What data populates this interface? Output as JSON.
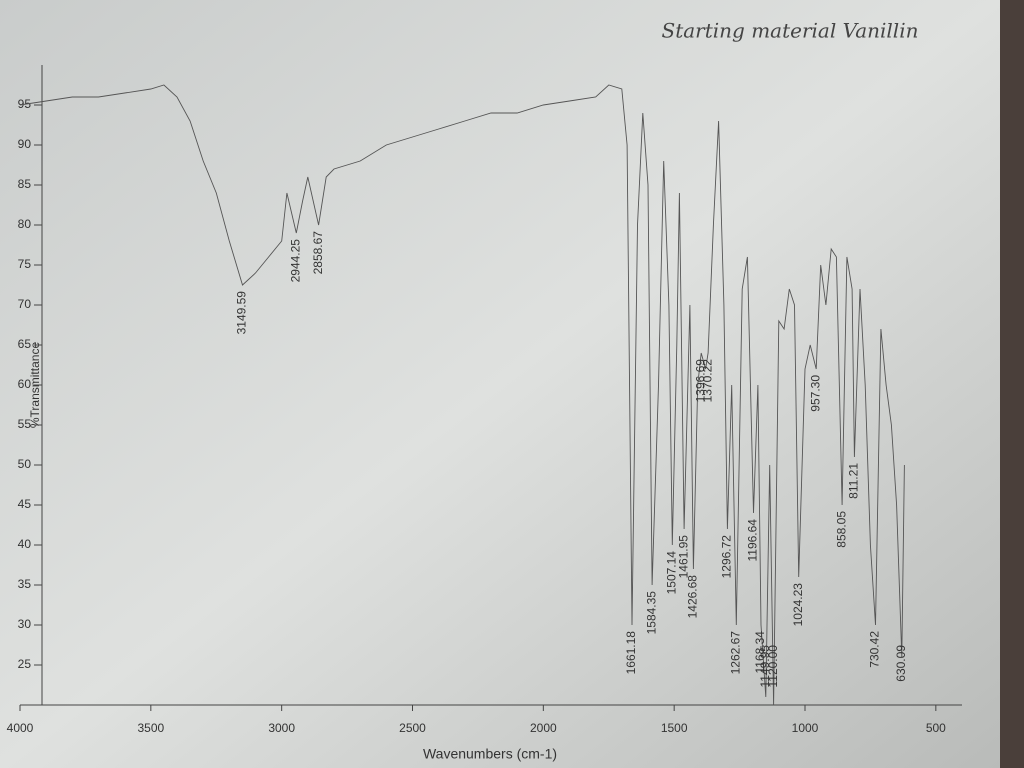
{
  "chart_data": {
    "type": "line",
    "title": "Starting material Vanillin",
    "x_label": "Wavenumbers (cm-1)",
    "y_label": "%Transmittance",
    "xlim": [
      4000,
      400
    ],
    "ylim": [
      20,
      100
    ],
    "xticks": [
      4000,
      3500,
      3000,
      2500,
      2000,
      1500,
      1000,
      500
    ],
    "yticks": [
      25,
      30,
      35,
      40,
      45,
      50,
      55,
      60,
      65,
      70,
      75,
      80,
      85,
      90,
      95
    ],
    "grid": false,
    "series": [
      {
        "name": "Vanillin",
        "color": "#555555",
        "x": [
          4000,
          3900,
          3800,
          3700,
          3600,
          3500,
          3450,
          3400,
          3350,
          3300,
          3250,
          3200,
          3149.59,
          3100,
          3050,
          3000,
          2980,
          2944.25,
          2920,
          2900,
          2858.67,
          2830,
          2800,
          2700,
          2600,
          2500,
          2400,
          2300,
          2200,
          2100,
          2000,
          1900,
          1800,
          1750,
          1700,
          1680,
          1661.18,
          1640,
          1620,
          1600,
          1584.35,
          1560,
          1540,
          1520,
          1507.14,
          1490,
          1480,
          1461.95,
          1440,
          1426.68,
          1410,
          1396.69,
          1380,
          1370.22,
          1350,
          1330,
          1310,
          1296.72,
          1280,
          1262.67,
          1240,
          1220,
          1196.64,
          1180,
          1168.34,
          1149.95,
          1135,
          1120,
          1100,
          1080,
          1060,
          1040,
          1024.23,
          1000,
          980,
          957.3,
          940,
          920,
          900,
          880,
          858.05,
          840,
          820,
          811.21,
          790,
          770,
          750,
          730.42,
          710,
          690,
          670,
          650,
          630.09,
          620
        ],
        "values": [
          95,
          95.5,
          96,
          96,
          96.5,
          97,
          97.5,
          96,
          93,
          88,
          84,
          78,
          72.5,
          74,
          76,
          78,
          84,
          79,
          83,
          86,
          80,
          86,
          87,
          88,
          90,
          91,
          92,
          93,
          94,
          94,
          95,
          95.5,
          96,
          97.5,
          97,
          90,
          30,
          80,
          94,
          85,
          35,
          60,
          88,
          70,
          40,
          65,
          84,
          42,
          70,
          37,
          60,
          64,
          62,
          64,
          80,
          93,
          70,
          42,
          60,
          30,
          72,
          76,
          44,
          60,
          30,
          21,
          50,
          20,
          68,
          67,
          72,
          70,
          36,
          62,
          65,
          62,
          75,
          70,
          77,
          76,
          45,
          76,
          72,
          51,
          72,
          60,
          40,
          30,
          67,
          60,
          55,
          45,
          26,
          50
        ]
      }
    ],
    "annotations": [
      {
        "x": 3149.59,
        "label": "3149.59"
      },
      {
        "x": 2944.25,
        "label": "2944.25"
      },
      {
        "x": 2858.67,
        "label": "2858.67"
      },
      {
        "x": 1661.18,
        "label": "1661.18"
      },
      {
        "x": 1584.35,
        "label": "1584.35"
      },
      {
        "x": 1507.14,
        "label": "1507.14"
      },
      {
        "x": 1461.95,
        "label": "1461.95"
      },
      {
        "x": 1426.68,
        "label": "1426.68"
      },
      {
        "x": 1396.69,
        "label": "1396.69"
      },
      {
        "x": 1370.22,
        "label": "1370.22"
      },
      {
        "x": 1296.72,
        "label": "1296.72"
      },
      {
        "x": 1262.67,
        "label": "1262.67"
      },
      {
        "x": 1196.64,
        "label": "1196.64"
      },
      {
        "x": 1168.34,
        "label": "1168.34"
      },
      {
        "x": 1149.95,
        "label": "1149.95"
      },
      {
        "x": 1120,
        "label": "1120.00"
      },
      {
        "x": 1024.23,
        "label": "1024.23"
      },
      {
        "x": 957.3,
        "label": "957.30"
      },
      {
        "x": 858.05,
        "label": "858.05"
      },
      {
        "x": 811.21,
        "label": "811.21"
      },
      {
        "x": 730.42,
        "label": "730.42"
      },
      {
        "x": 630.09,
        "label": "630.09"
      }
    ]
  }
}
